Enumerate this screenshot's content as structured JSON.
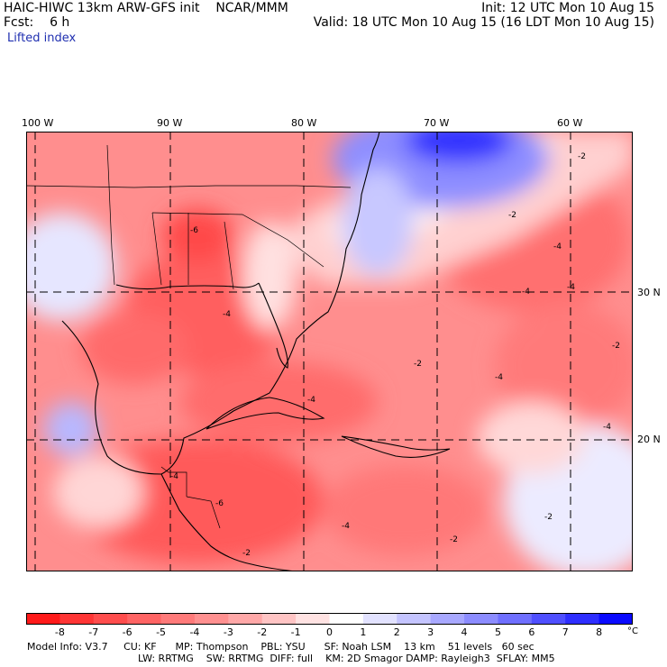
{
  "header": {
    "model": "HAIC-HIWC 13km ARW-GFS init",
    "org": "NCAR/MMM",
    "init": "Init: 12 UTC Mon 10 Aug 15",
    "fcst_label": "Fcst:",
    "fcst_value": "6 h",
    "valid": "Valid: 18 UTC Mon 10 Aug 15 (16 LDT Mon 10 Aug 15)",
    "field": "Lifted index"
  },
  "map": {
    "lon_labels": [
      "100 W",
      "90 W",
      "80 W",
      "70 W",
      "60 W"
    ],
    "lat_labels": [
      "30 N",
      "20 N"
    ],
    "contour_labels": [
      "-6",
      "-4",
      "-4",
      "-2",
      "-2",
      "-4",
      "-4",
      "-4",
      "-2",
      "-4",
      "-4",
      "-2",
      "-4",
      "-6",
      "-4",
      "-2",
      "-2",
      "-2"
    ]
  },
  "colorbar": {
    "labels": [
      "-8",
      "-7",
      "-6",
      "-5",
      "-4",
      "-3",
      "-2",
      "-1",
      "0",
      "1",
      "2",
      "3",
      "4",
      "5",
      "6",
      "7",
      "8"
    ],
    "unit": "°C",
    "colors": [
      "#ff1a1a",
      "#ff3535",
      "#ff4d4d",
      "#ff6464",
      "#ff7a7a",
      "#ff9090",
      "#ffa8a8",
      "#ffc4c4",
      "#ffe2e2",
      "#ffffff",
      "#e2e2ff",
      "#c4c4ff",
      "#a8a8ff",
      "#8c8cff",
      "#6f6fff",
      "#4f4fff",
      "#2e2eff",
      "#0a0aff"
    ]
  },
  "model_info": {
    "line1": [
      "Model Info: V3.7",
      "CU: KF",
      "MP: Thompson",
      "PBL: YSU",
      "SF: Noah LSM",
      "13 km",
      "51 levels",
      "60 sec"
    ],
    "line2": [
      "LW: RRTMG",
      "SW: RRTMG",
      "DIFF: full",
      "KM: 2D Smagor",
      "DAMP: Rayleigh3",
      "SFLAY: MM5"
    ]
  }
}
